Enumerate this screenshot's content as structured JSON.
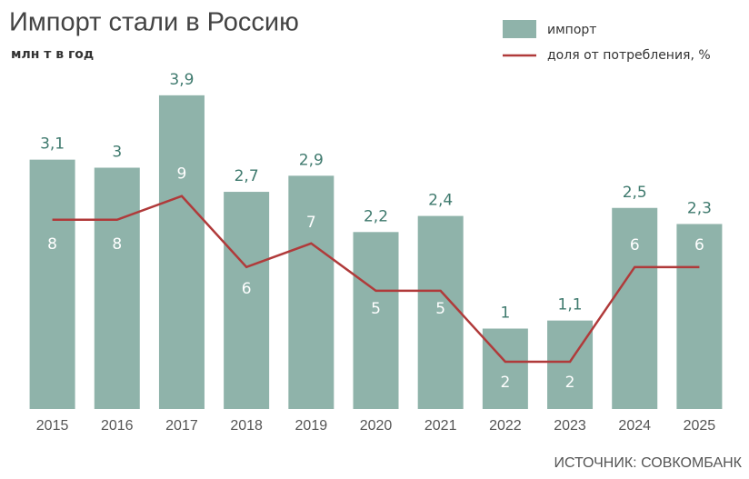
{
  "chart_data": {
    "type": "bar",
    "title": "Импорт стали в Россию",
    "subtitle": "млн т в год",
    "source": "ИСТОЧНИК: СОВКОМБАНК",
    "categories": [
      "2015",
      "2016",
      "2017",
      "2018",
      "2019",
      "2020",
      "2021",
      "2022",
      "2023",
      "2024",
      "2025"
    ],
    "series": [
      {
        "name": "импорт",
        "color": "#8fb3aa",
        "values": [
          3.1,
          3,
          3.9,
          2.7,
          2.9,
          2.2,
          2.4,
          1,
          1.1,
          2.5,
          2.3
        ],
        "value_labels": [
          "3,1",
          "3",
          "3,9",
          "2,7",
          "2,9",
          "2,2",
          "2,4",
          "1",
          "1,1",
          "2,5",
          "2,3"
        ]
      },
      {
        "name": "доля от потребления, %",
        "color": "#b03a3a",
        "axis": "y2",
        "type": "line",
        "values": [
          8,
          8,
          9,
          6,
          7,
          5,
          5,
          2,
          2,
          6,
          6
        ]
      }
    ],
    "ylim": [
      0,
      5
    ],
    "y2lim": [
      0,
      17
    ],
    "legend": "top-right"
  }
}
